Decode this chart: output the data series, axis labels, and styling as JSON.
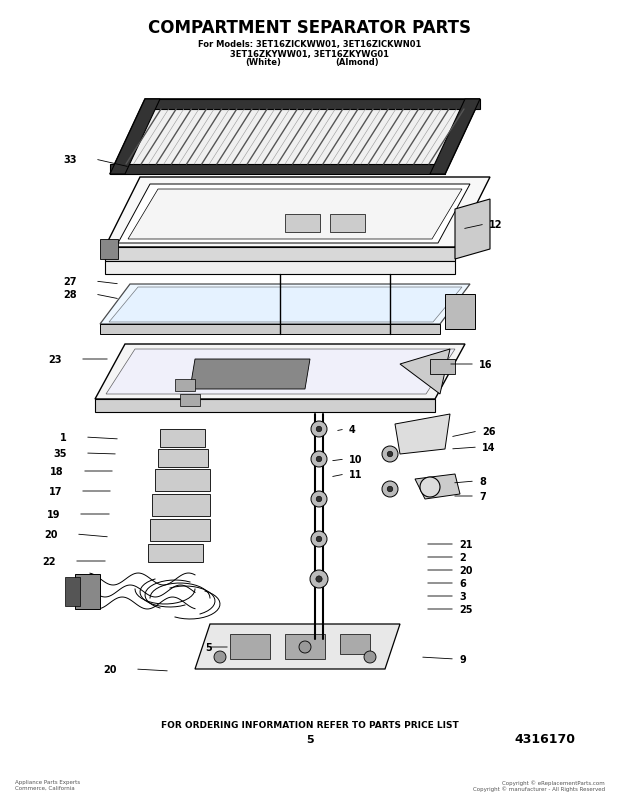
{
  "title": "COMPARTMENT SEPARATOR PARTS",
  "subtitle_line1": "For Models: 3ET16ZICKWW01, 3ET16ZICKWN01",
  "subtitle_line2": "3ET16ZKYWW01, 3ET16ZKYWG01",
  "subtitle_line3_left": "(White)",
  "subtitle_line3_right": "(Almond)",
  "footer_text": "FOR ORDERING INFORMATION REFER TO PARTS PRICE LIST",
  "page_num": "5",
  "part_num": "4316170",
  "bg_color": "#ffffff",
  "watermark": "eReplacementParts.com",
  "copyright_left": "Appliance Parts Experts\nCommerce, California",
  "copyright_right": "Copyright © eReplacementParts.com\nCopyright © manufacturer - All Rights Reserved"
}
